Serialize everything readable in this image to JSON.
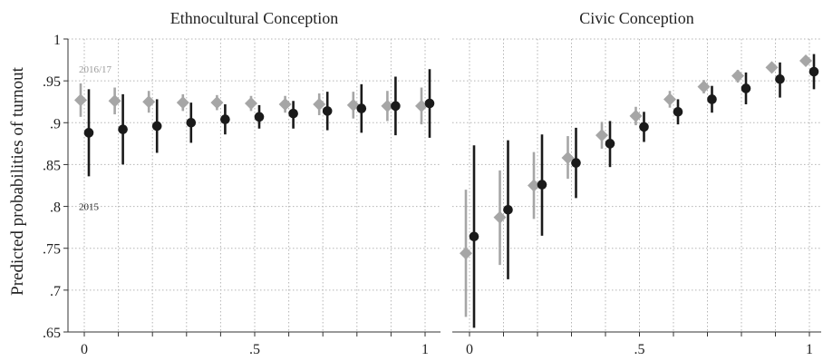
{
  "figure": {
    "ylabel": "Predicted probabilities of turnout"
  },
  "chart_data": [
    {
      "type": "scatter",
      "title": "Ethnocultural Conception",
      "xlabel": "",
      "ylabel": "Predicted probabilities of turnout",
      "ylim": [
        0.65,
        1
      ],
      "xlim": [
        0,
        1
      ],
      "yticks": [
        ".65",
        ".7",
        ".75",
        ".8",
        ".85",
        ".9",
        ".95",
        "1"
      ],
      "xticks": [
        "0",
        ".5",
        "1"
      ],
      "grid": true,
      "annotations": [
        {
          "text": "2016/17",
          "x": 0,
          "y": 0.964,
          "color": "#9a9a9a"
        },
        {
          "text": "2015",
          "x": 0,
          "y": 0.8,
          "color": "#222222"
        }
      ],
      "series": [
        {
          "color": "#a6a6a6",
          "marker": "diamond",
          "x": [
            0,
            0.1,
            0.2,
            0.3,
            0.4,
            0.5,
            0.6,
            0.7,
            0.8,
            0.9,
            1
          ],
          "y": [
            0.927,
            0.926,
            0.925,
            0.924,
            0.924,
            0.923,
            0.922,
            0.922,
            0.921,
            0.92,
            0.92
          ],
          "lo": [
            0.907,
            0.91,
            0.912,
            0.914,
            0.915,
            0.914,
            0.912,
            0.909,
            0.905,
            0.902,
            0.898
          ],
          "hi": [
            0.947,
            0.942,
            0.938,
            0.934,
            0.933,
            0.932,
            0.932,
            0.935,
            0.937,
            0.938,
            0.942
          ]
        },
        {
          "color": "#1a1a1a",
          "marker": "circle",
          "x": [
            0,
            0.1,
            0.2,
            0.3,
            0.4,
            0.5,
            0.6,
            0.7,
            0.8,
            0.9,
            1
          ],
          "y": [
            0.888,
            0.892,
            0.896,
            0.9,
            0.904,
            0.907,
            0.911,
            0.914,
            0.917,
            0.92,
            0.923
          ],
          "lo": [
            0.836,
            0.85,
            0.864,
            0.876,
            0.886,
            0.893,
            0.893,
            0.891,
            0.888,
            0.885,
            0.882
          ],
          "hi": [
            0.94,
            0.934,
            0.928,
            0.924,
            0.922,
            0.921,
            0.926,
            0.937,
            0.946,
            0.955,
            0.964
          ]
        }
      ]
    },
    {
      "type": "scatter",
      "title": "Civic Conception",
      "xlabel": "",
      "ylabel": "",
      "ylim": [
        0.65,
        1
      ],
      "xlim": [
        0,
        1
      ],
      "xticks": [
        "0",
        ".5",
        "1"
      ],
      "grid": true,
      "series": [
        {
          "color": "#a6a6a6",
          "marker": "diamond",
          "x": [
            0,
            0.1,
            0.2,
            0.3,
            0.4,
            0.5,
            0.6,
            0.7,
            0.8,
            0.9,
            1
          ],
          "y": [
            0.744,
            0.787,
            0.825,
            0.858,
            0.885,
            0.908,
            0.928,
            0.943,
            0.956,
            0.966,
            0.974
          ],
          "lo": [
            0.668,
            0.73,
            0.785,
            0.833,
            0.869,
            0.897,
            0.918,
            0.935,
            0.948,
            0.96,
            0.968
          ],
          "hi": [
            0.82,
            0.843,
            0.865,
            0.884,
            0.901,
            0.919,
            0.938,
            0.951,
            0.963,
            0.972,
            0.98
          ]
        },
        {
          "color": "#1a1a1a",
          "marker": "circle",
          "x": [
            0,
            0.1,
            0.2,
            0.3,
            0.4,
            0.5,
            0.6,
            0.7,
            0.8,
            0.9,
            1
          ],
          "y": [
            0.764,
            0.796,
            0.826,
            0.852,
            0.875,
            0.895,
            0.913,
            0.928,
            0.941,
            0.952,
            0.961
          ],
          "lo": [
            0.655,
            0.713,
            0.765,
            0.81,
            0.847,
            0.877,
            0.898,
            0.912,
            0.922,
            0.93,
            0.94
          ],
          "hi": [
            0.873,
            0.879,
            0.886,
            0.894,
            0.902,
            0.913,
            0.928,
            0.944,
            0.96,
            0.972,
            0.982
          ]
        }
      ]
    }
  ]
}
